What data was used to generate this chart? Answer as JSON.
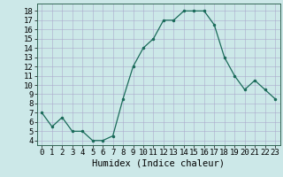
{
  "x": [
    0,
    1,
    2,
    3,
    4,
    5,
    6,
    7,
    8,
    9,
    10,
    11,
    12,
    13,
    14,
    15,
    16,
    17,
    18,
    19,
    20,
    21,
    22,
    23
  ],
  "y": [
    7,
    5.5,
    6.5,
    5,
    5,
    4,
    4,
    4.5,
    8.5,
    12,
    14,
    15,
    17,
    17,
    18,
    18,
    18,
    16.5,
    13,
    11,
    9.5,
    10.5,
    9.5,
    8.5
  ],
  "title": "",
  "xlabel": "Humidex (Indice chaleur)",
  "ylabel": "",
  "xlim": [
    -0.5,
    23.5
  ],
  "ylim": [
    3.5,
    18.8
  ],
  "yticks": [
    4,
    5,
    6,
    7,
    8,
    9,
    10,
    11,
    12,
    13,
    14,
    15,
    16,
    17,
    18
  ],
  "xticks": [
    0,
    1,
    2,
    3,
    4,
    5,
    6,
    7,
    8,
    9,
    10,
    11,
    12,
    13,
    14,
    15,
    16,
    17,
    18,
    19,
    20,
    21,
    22,
    23
  ],
  "line_color": "#1a6b5a",
  "marker_color": "#1a6b5a",
  "bg_color": "#cce8e8",
  "grid_color": "#aaaacc",
  "tick_fontsize": 6.5,
  "xlabel_fontsize": 7.5
}
